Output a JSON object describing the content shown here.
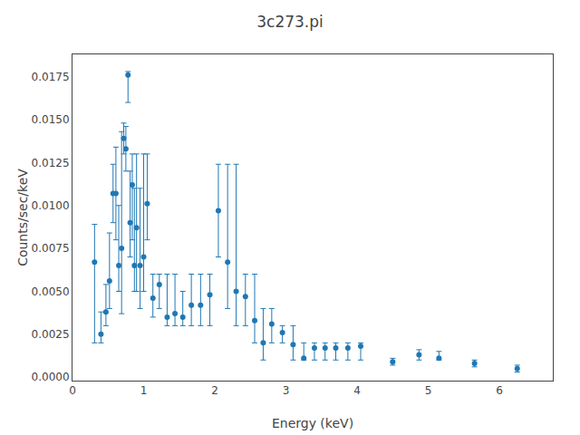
{
  "chart_data": {
    "type": "scatter",
    "title": "3c273.pi",
    "xlabel": "Energy (keV)",
    "ylabel": "Counts/sec/keV",
    "color": "#1f77b4",
    "marker": "circle",
    "grid": false,
    "x": [
      0.31,
      0.4,
      0.47,
      0.52,
      0.57,
      0.61,
      0.65,
      0.69,
      0.72,
      0.75,
      0.78,
      0.81,
      0.84,
      0.87,
      0.9,
      0.95,
      1.0,
      1.05,
      1.13,
      1.22,
      1.33,
      1.44,
      1.55,
      1.67,
      1.8,
      1.93,
      2.05,
      2.18,
      2.3,
      2.43,
      2.56,
      2.68,
      2.8,
      2.95,
      3.1,
      3.25,
      3.4,
      3.55,
      3.7,
      3.87,
      4.05,
      4.5,
      4.87,
      5.15,
      5.65,
      6.25
    ],
    "values": [
      0.0067,
      0.0025,
      0.0038,
      0.0056,
      0.0107,
      0.0107,
      0.0065,
      0.0075,
      0.0139,
      0.0133,
      0.0176,
      0.009,
      0.0112,
      0.0065,
      0.0087,
      0.0065,
      0.007,
      0.0101,
      0.0046,
      0.0054,
      0.0035,
      0.0037,
      0.0035,
      0.0042,
      0.0042,
      0.0048,
      0.0097,
      0.0067,
      0.005,
      0.0047,
      0.0033,
      0.002,
      0.0031,
      0.0026,
      0.0019,
      0.0011,
      0.0017,
      0.0017,
      0.0017,
      0.0017,
      0.0018,
      0.0009,
      0.0013,
      0.0011,
      0.0008,
      0.0005
    ],
    "yerr_lo": [
      0.0047,
      0.0005,
      0.0008,
      0.0016,
      0.0017,
      0.0027,
      0.0015,
      0.0038,
      0.0009,
      0.0013,
      0.0016,
      0.002,
      0.0032,
      0.0015,
      0.0037,
      0.0025,
      0.002,
      0.0021,
      0.0011,
      0.0014,
      0.0005,
      0.0007,
      0.0005,
      0.0012,
      0.0012,
      0.0018,
      0.0027,
      0.0027,
      0.002,
      0.0017,
      0.0013,
      0.001,
      0.0011,
      0.0006,
      0.0009,
      0.0001,
      0.0007,
      0.0007,
      0.0007,
      0.0007,
      0.0008,
      0.0002,
      0.0003,
      0.0001,
      0.0002,
      0.0002
    ],
    "yerr_hi": [
      0.0022,
      0.0013,
      0.0016,
      0.0028,
      0.0017,
      0.0027,
      0.0035,
      0.0068,
      0.0009,
      0.0013,
      0.0002,
      0.003,
      0.0018,
      0.0045,
      0.0043,
      0.0045,
      0.006,
      0.0029,
      0.0014,
      0.0006,
      0.0025,
      0.0023,
      0.0015,
      0.0018,
      0.0018,
      0.0012,
      0.0027,
      0.0057,
      0.0074,
      0.0013,
      0.0027,
      0.002,
      0.0009,
      0.0004,
      0.0011,
      0.0009,
      0.0003,
      0.0003,
      0.0003,
      0.0003,
      0.0002,
      0.0002,
      0.0003,
      0.0004,
      0.0002,
      0.0002
    ],
    "xlim": [
      0.0,
      6.75
    ],
    "ylim": [
      -0.0002,
      0.0188
    ],
    "xticks": [
      0,
      1,
      2,
      3,
      4,
      5,
      6
    ],
    "yticks": [
      {
        "value": 0,
        "label": "0.0000"
      },
      0.0025,
      {
        "value": 0.005,
        "label": "0.0050"
      },
      0.0075,
      {
        "value": 0.01,
        "label": "0.0100"
      },
      0.0125,
      {
        "value": 0.015,
        "label": "0.0150"
      },
      0.0175
    ]
  }
}
